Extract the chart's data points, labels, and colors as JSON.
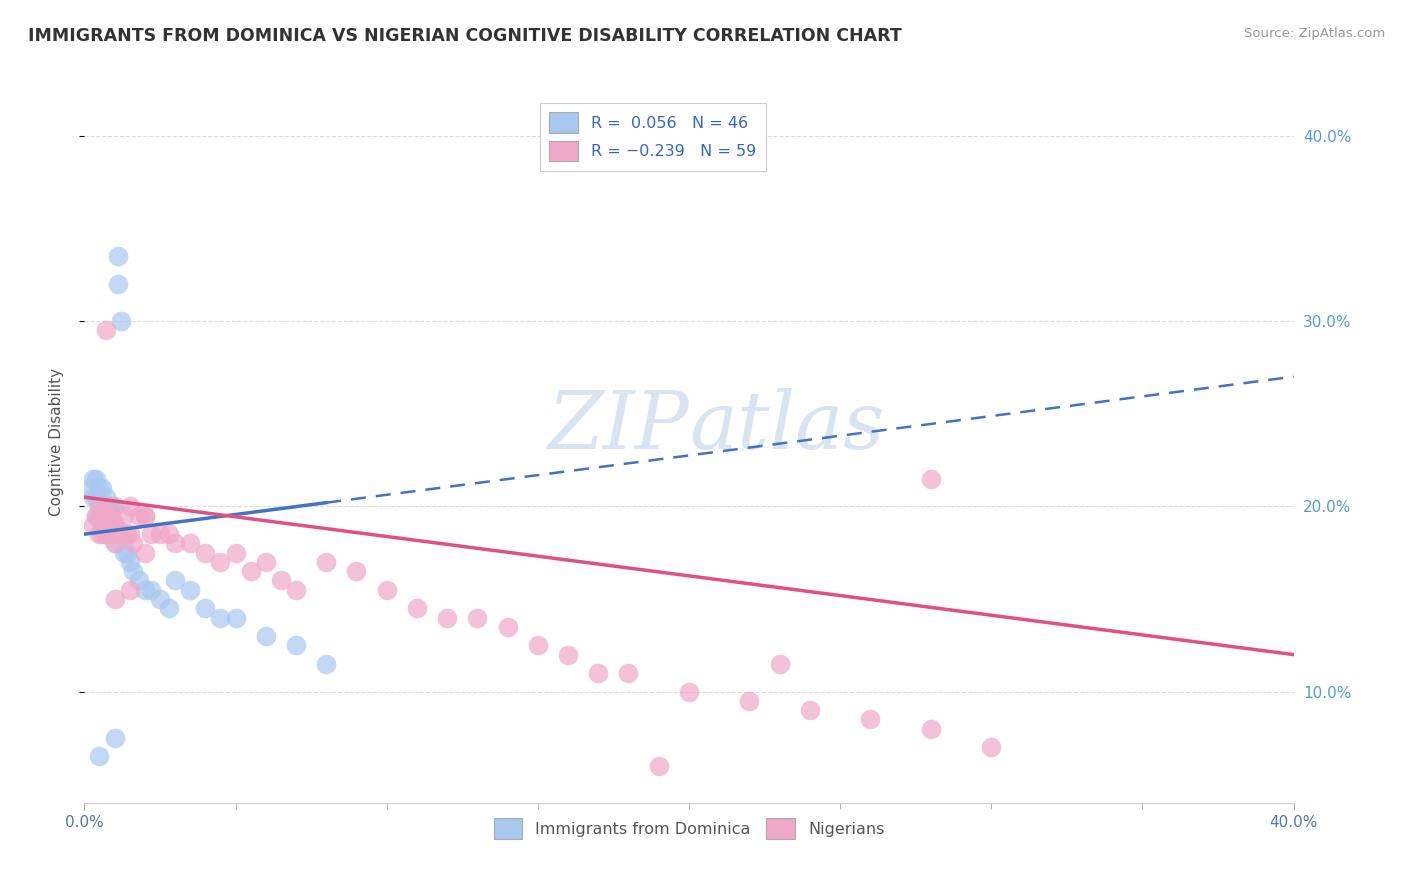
{
  "title": "IMMIGRANTS FROM DOMINICA VS NIGERIAN COGNITIVE DISABILITY CORRELATION CHART",
  "source": "Source: ZipAtlas.com",
  "ylabel": "Cognitive Disability",
  "xlim": [
    0.0,
    0.4
  ],
  "ylim": [
    0.04,
    0.43
  ],
  "x_ticks": [
    0.0,
    0.4
  ],
  "x_tick_labels": [
    "0.0%",
    "40.0%"
  ],
  "y_ticks": [
    0.1,
    0.2,
    0.3,
    0.4
  ],
  "y_tick_labels": [
    "10.0%",
    "20.0%",
    "30.0%",
    "40.0%"
  ],
  "r_blue": 0.056,
  "n_blue": 46,
  "r_pink": -0.239,
  "n_pink": 59,
  "blue_color": "#a8c8f0",
  "pink_color": "#f0a8c8",
  "blue_line_color": "#4472c4",
  "pink_line_color": "#e05080",
  "legend_label_blue": "Immigrants from Dominica",
  "legend_label_pink": "Nigerians",
  "watermark": "ZIPAtlas",
  "background_color": "#ffffff",
  "grid_color": "#d8d8d8",
  "blue_x": [
    0.002,
    0.003,
    0.003,
    0.004,
    0.004,
    0.004,
    0.005,
    0.005,
    0.005,
    0.006,
    0.006,
    0.006,
    0.007,
    0.007,
    0.007,
    0.008,
    0.008,
    0.008,
    0.009,
    0.009,
    0.009,
    0.01,
    0.01,
    0.01,
    0.011,
    0.011,
    0.012,
    0.013,
    0.014,
    0.015,
    0.016,
    0.018,
    0.02,
    0.022,
    0.025,
    0.028,
    0.03,
    0.035,
    0.04,
    0.045,
    0.05,
    0.06,
    0.07,
    0.08,
    0.01,
    0.005
  ],
  "blue_y": [
    0.21,
    0.215,
    0.205,
    0.195,
    0.205,
    0.215,
    0.195,
    0.2,
    0.21,
    0.19,
    0.2,
    0.21,
    0.185,
    0.195,
    0.205,
    0.185,
    0.195,
    0.2,
    0.185,
    0.19,
    0.2,
    0.18,
    0.19,
    0.2,
    0.335,
    0.32,
    0.3,
    0.175,
    0.175,
    0.17,
    0.165,
    0.16,
    0.155,
    0.155,
    0.15,
    0.145,
    0.16,
    0.155,
    0.145,
    0.14,
    0.14,
    0.13,
    0.125,
    0.115,
    0.075,
    0.065
  ],
  "pink_x": [
    0.003,
    0.004,
    0.005,
    0.005,
    0.006,
    0.006,
    0.007,
    0.007,
    0.008,
    0.008,
    0.009,
    0.009,
    0.01,
    0.01,
    0.011,
    0.012,
    0.013,
    0.014,
    0.015,
    0.015,
    0.016,
    0.018,
    0.02,
    0.02,
    0.022,
    0.025,
    0.028,
    0.03,
    0.035,
    0.04,
    0.045,
    0.05,
    0.055,
    0.06,
    0.065,
    0.07,
    0.08,
    0.09,
    0.1,
    0.11,
    0.12,
    0.13,
    0.14,
    0.15,
    0.16,
    0.17,
    0.18,
    0.2,
    0.22,
    0.24,
    0.26,
    0.28,
    0.3,
    0.01,
    0.015,
    0.02,
    0.28,
    0.23,
    0.19
  ],
  "pink_y": [
    0.19,
    0.195,
    0.185,
    0.2,
    0.185,
    0.195,
    0.185,
    0.295,
    0.19,
    0.2,
    0.185,
    0.195,
    0.18,
    0.19,
    0.185,
    0.185,
    0.195,
    0.185,
    0.185,
    0.2,
    0.18,
    0.195,
    0.175,
    0.195,
    0.185,
    0.185,
    0.185,
    0.18,
    0.18,
    0.175,
    0.17,
    0.175,
    0.165,
    0.17,
    0.16,
    0.155,
    0.17,
    0.165,
    0.155,
    0.145,
    0.14,
    0.14,
    0.135,
    0.125,
    0.12,
    0.11,
    0.11,
    0.1,
    0.095,
    0.09,
    0.085,
    0.08,
    0.07,
    0.15,
    0.155,
    0.195,
    0.215,
    0.115,
    0.06
  ],
  "blue_line_x0": 0.0,
  "blue_line_y0": 0.185,
  "blue_line_x1": 0.4,
  "blue_line_y1": 0.27,
  "pink_line_x0": 0.0,
  "pink_line_y0": 0.205,
  "pink_line_x1": 0.4,
  "pink_line_y1": 0.12
}
